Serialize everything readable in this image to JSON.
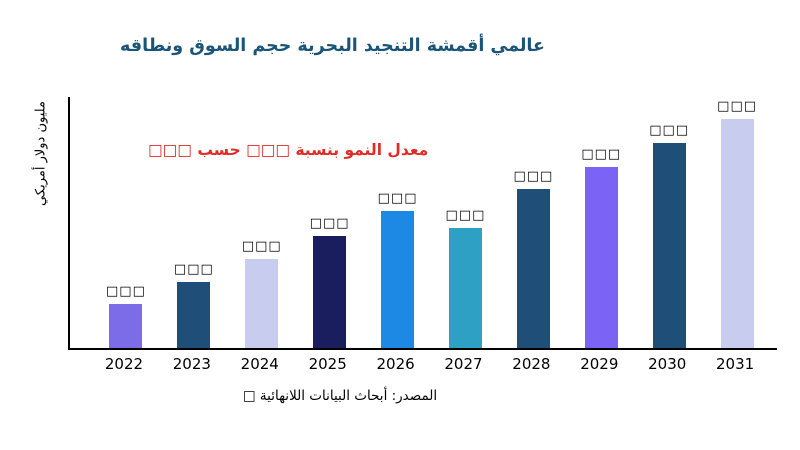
{
  "chart_data": {
    "type": "bar",
    "title": "عالمي أقمشة التنجيد البحرية حجم السوق ونطاقه",
    "title_color": "#1A5578",
    "ylabel": "مليون دولار أمريكي",
    "xlabel": "",
    "annotation": "معدل النمو بنسبة □□□ حسب □□□",
    "annotation_color": "#E02B26",
    "source": "المصدر: أبحاث البيانات اللانهائية □",
    "categories": [
      "2022",
      "2023",
      "2024",
      "2025",
      "2026",
      "2027",
      "2028",
      "2029",
      "2030",
      "2031"
    ],
    "values": [
      44,
      66,
      89,
      112,
      137,
      120,
      159,
      181,
      205,
      229
    ],
    "value_labels": [
      "□□□",
      "□□□",
      "□□□",
      "□□□",
      "□□□",
      "□□□",
      "□□□",
      "□□□",
      "□□□",
      "□□□"
    ],
    "bar_colors": [
      "#7C6CE8",
      "#1F4E79",
      "#C8CCEF",
      "#1A1E5E",
      "#1E88E5",
      "#2DA0C4",
      "#1F4E79",
      "#7A63F5",
      "#1F4E79",
      "#C8CCEF"
    ],
    "ylim": [
      0,
      251
    ],
    "grid": false,
    "legend": null
  }
}
